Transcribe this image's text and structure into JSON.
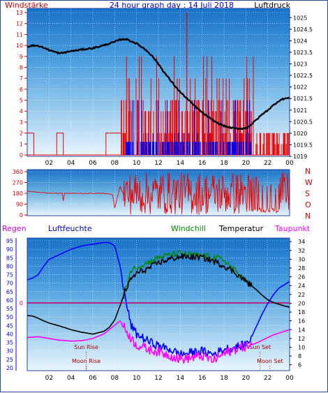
{
  "header": {
    "left_title": "Windstärke",
    "center_title": "24 hour graph day : 14 Juli 2018",
    "right_title": "Luftdruck"
  },
  "colors": {
    "frame": "#2244aa",
    "wind_avg": "#ee0000",
    "wind_gust_blue": "#0000ee",
    "pressure": "#000000",
    "direction": "#ee0000",
    "humidity": "#0000ff",
    "temperature": "#000000",
    "windchill": "#008800",
    "dewpoint": "#ff00ff",
    "rain_line": "#cc0066",
    "sun_moon": "#aa0000",
    "axis_text_red": "#cc0000",
    "axis_text_blue": "#0000cc"
  },
  "x_axis": {
    "tick_labels": [
      "02",
      "04",
      "06",
      "08",
      "10",
      "12",
      "14",
      "16",
      "18",
      "20",
      "22",
      "00"
    ]
  },
  "chart_data": [
    {
      "type": "line",
      "title": "Windstärke / Luftdruck",
      "left_axis_label": "Windstärke",
      "right_axis_label": "Luftdruck",
      "wind_ticks": [
        "0",
        "1",
        "2",
        "3",
        "4",
        "5",
        "6",
        "7",
        "8",
        "9",
        "10",
        "11",
        "12",
        "13"
      ],
      "wind_ylim": [
        0,
        13
      ],
      "pressure_ticks": [
        "1019",
        "1019.5",
        "1020",
        "1020.5",
        "1021",
        "1021.5",
        "1022",
        "1022.5",
        "1023",
        "1023.5",
        "1024",
        "1024.5",
        "1025"
      ],
      "pressure_ylim": [
        1019,
        1025.4
      ],
      "series": [
        {
          "name": "Luftdruck",
          "x": [
            0,
            0.5,
            1,
            1.5,
            2,
            2.5,
            3,
            3.5,
            4,
            4.5,
            5,
            5.5,
            6,
            6.5,
            7,
            7.5,
            8,
            8.5,
            9,
            9.5,
            10,
            10.5,
            11,
            11.5,
            12,
            12.5,
            13,
            13.5,
            14,
            14.5,
            15,
            15.5,
            16,
            16.5,
            17,
            17.5,
            18,
            18.5,
            19,
            19.5,
            20,
            20.5,
            21,
            21.5,
            22,
            22.5,
            23,
            23.5,
            24
          ],
          "values": [
            1023.75,
            1023.8,
            1023.78,
            1023.7,
            1023.6,
            1023.52,
            1023.45,
            1023.5,
            1023.55,
            1023.58,
            1023.62,
            1023.65,
            1023.68,
            1023.74,
            1023.8,
            1023.88,
            1023.95,
            1024.05,
            1024.08,
            1023.98,
            1023.88,
            1023.72,
            1023.55,
            1023.3,
            1023.0,
            1022.65,
            1022.35,
            1022.05,
            1021.78,
            1021.55,
            1021.32,
            1021.1,
            1020.9,
            1020.72,
            1020.55,
            1020.42,
            1020.32,
            1020.25,
            1020.2,
            1020.2,
            1020.22,
            1020.38,
            1020.6,
            1020.82,
            1021.0,
            1021.2,
            1021.4,
            1021.5,
            1021.52
          ]
        }
      ],
      "wind_avg_levels_note": "step values of wind",
      "wind_base_segments": [
        {
          "x0": 0.0,
          "x1": 0.6,
          "v": 2
        },
        {
          "x0": 2.7,
          "x1": 3.3,
          "v": 2
        },
        {
          "x0": 7.2,
          "x1": 8.6,
          "v": 2
        }
      ],
      "wind_gust_max": 13,
      "wind_gust_at": 14.6
    },
    {
      "type": "line",
      "title": "Windrichtung",
      "left_ticks": [
        "0",
        "90",
        "180",
        "270",
        "360"
      ],
      "ylim": [
        0,
        360
      ],
      "right_labels": [
        "N",
        "W",
        "S",
        "O",
        "N"
      ],
      "series": [
        {
          "name": "Richtung",
          "x": [
            0,
            0.8,
            1.5,
            2.5,
            3.2,
            3.3,
            3.4,
            4,
            5,
            6,
            7,
            7.8,
            8,
            8.5,
            8.8
          ],
          "values": [
            200,
            190,
            185,
            180,
            180,
            120,
            180,
            180,
            180,
            180,
            180,
            170,
            60,
            240,
            170
          ]
        }
      ]
    },
    {
      "type": "line",
      "title": "Regen / Luftfeuchte / Windchill / Temperatur / Taupunkt",
      "labels": {
        "rain": "Regen",
        "humidity": "Luftfeuchte",
        "windchill": "Windchill",
        "temperature": "Temperatur",
        "dewpoint": "Taupunkt"
      },
      "humidity_ticks": [
        "20",
        "25",
        "30",
        "35",
        "40",
        "45",
        "50",
        "55",
        "60",
        "65",
        "70",
        "75",
        "80",
        "85",
        "90",
        "95"
      ],
      "humidity_ylim": [
        20,
        95
      ],
      "temp_ticks": [
        "6",
        "8",
        "10",
        "12",
        "14",
        "16",
        "18",
        "20",
        "22",
        "24",
        "26",
        "28",
        "30",
        "32",
        "34"
      ],
      "temp_ylim": [
        5,
        34.5
      ],
      "rain_value_label": "0",
      "annotations": [
        "Sun Rise",
        "Moon Rise",
        "Sun Set",
        "Moon Set"
      ],
      "sun_rise": 5.4,
      "moon_rise": 5.4,
      "sun_set": 21.3,
      "moon_set": 22.2,
      "series": [
        {
          "name": "Luftfeuchte",
          "x": [
            0,
            0.5,
            1,
            1.5,
            2,
            3,
            4,
            5,
            6,
            7,
            7.5,
            8,
            8.5,
            9,
            9.5,
            10,
            11,
            12,
            13,
            14,
            15,
            16,
            17,
            18,
            19,
            20,
            20.5,
            21,
            21.5,
            22,
            22.5,
            23,
            23.5,
            24
          ],
          "values": [
            72,
            73,
            75,
            80,
            84,
            87,
            90,
            92,
            93,
            94,
            94,
            92,
            80,
            60,
            45,
            40,
            36,
            33,
            31,
            28,
            29,
            30,
            28,
            31,
            32,
            34,
            38,
            45,
            52,
            58,
            63,
            67,
            69,
            71
          ]
        },
        {
          "name": "Temperatur",
          "x": [
            0,
            0.5,
            1,
            1.5,
            2,
            3,
            4,
            5,
            6,
            7,
            7.5,
            8,
            8.5,
            9,
            9.5,
            10,
            11,
            12,
            13,
            14,
            15,
            16,
            17,
            18,
            19,
            20,
            20.5,
            21,
            21.5,
            22,
            22.5,
            23,
            23.5,
            24
          ],
          "values": [
            17.2,
            17.1,
            16.6,
            16.0,
            15.5,
            14.8,
            14.0,
            13.4,
            13.0,
            13.6,
            14.5,
            16.2,
            19.5,
            23.0,
            25.5,
            26.8,
            27.8,
            29.2,
            30.0,
            30.6,
            30.5,
            30.4,
            29.6,
            28.5,
            27.0,
            25.0,
            24.0,
            23.0,
            21.8,
            20.8,
            20.2,
            19.8,
            19.4,
            19.1
          ]
        },
        {
          "name": "Windchill",
          "x": [
            0,
            0.5,
            1,
            1.5,
            2,
            3,
            4,
            5,
            6,
            7,
            7.5,
            8,
            8.5,
            9,
            9.5,
            10,
            11,
            12,
            13,
            14,
            15,
            16,
            17,
            18,
            19,
            20,
            20.5,
            21,
            21.5,
            22,
            22.5,
            23,
            23.5,
            24
          ],
          "values": [
            17.2,
            17.1,
            16.6,
            16.0,
            15.5,
            14.8,
            14.0,
            13.4,
            13.0,
            13.6,
            14.5,
            16.2,
            19.5,
            23.5,
            27.5,
            28.2,
            29.2,
            30.4,
            31.0,
            31.3,
            31.0,
            30.8,
            30.6,
            29.8,
            27.5,
            25.0,
            24.0,
            23.0,
            21.8,
            20.8,
            20.2,
            19.8,
            19.4,
            19.1
          ]
        },
        {
          "name": "Taupunkt",
          "x": [
            0,
            0.5,
            1,
            1.5,
            2,
            3,
            4,
            5,
            6,
            7,
            7.5,
            8,
            8.5,
            9,
            9.5,
            10,
            11,
            12,
            13,
            14,
            15,
            16,
            17,
            18,
            19,
            20,
            20.5,
            21,
            21.5,
            22,
            22.5,
            23,
            23.5,
            24
          ],
          "values": [
            12.2,
            12.3,
            12.4,
            12.2,
            12.0,
            11.6,
            11.4,
            11.5,
            12.0,
            13.0,
            14.0,
            15.0,
            16.0,
            14.0,
            12.0,
            10.5,
            9.6,
            9.0,
            8.2,
            7.3,
            7.6,
            8.0,
            7.0,
            8.5,
            9.6,
            10.2,
            10.5,
            11.0,
            11.6,
            12.2,
            12.8,
            13.2,
            13.6,
            14.0
          ]
        }
      ]
    }
  ]
}
